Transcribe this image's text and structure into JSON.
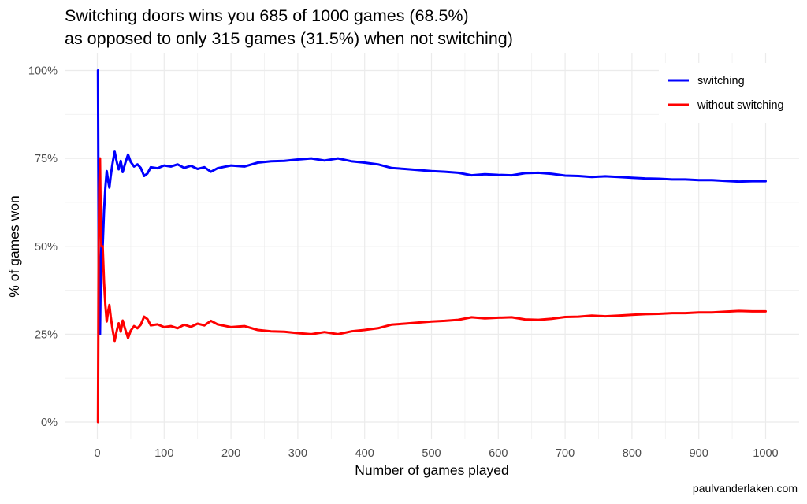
{
  "chart_data": {
    "type": "line",
    "title_lines": [
      "Switching doors wins you 685 of 1000 games (68.5%)",
      "as opposed to only 315 games (31.5%) when not switching)"
    ],
    "xlabel": "Number of games played",
    "ylabel": "% of games won",
    "xlim": [
      0,
      1000
    ],
    "ylim": [
      0,
      1
    ],
    "x_ticks": [
      0,
      100,
      200,
      300,
      400,
      500,
      600,
      700,
      800,
      900,
      1000
    ],
    "y_ticks": [
      0,
      0.25,
      0.5,
      0.75,
      1.0
    ],
    "y_tick_labels": [
      "0%",
      "25%",
      "50%",
      "75%",
      "100%"
    ],
    "grid": true,
    "legend_position": "top-right",
    "series": [
      {
        "name": "switching",
        "color": "#0000ff",
        "x": [
          1,
          2,
          3,
          4,
          5,
          6,
          8,
          10,
          12,
          14,
          16,
          18,
          20,
          22,
          24,
          26,
          28,
          30,
          32,
          35,
          38,
          42,
          46,
          50,
          55,
          60,
          65,
          70,
          75,
          80,
          90,
          100,
          110,
          120,
          130,
          140,
          150,
          160,
          170,
          180,
          190,
          200,
          220,
          240,
          260,
          280,
          300,
          320,
          340,
          360,
          380,
          400,
          420,
          440,
          460,
          480,
          500,
          520,
          540,
          560,
          580,
          600,
          620,
          640,
          660,
          680,
          700,
          720,
          740,
          760,
          780,
          800,
          820,
          840,
          860,
          880,
          900,
          920,
          940,
          960,
          980,
          1000
        ],
        "y": [
          1.0,
          0.5,
          0.333,
          0.25,
          0.4,
          0.5,
          0.5,
          0.6,
          0.667,
          0.714,
          0.688,
          0.667,
          0.7,
          0.727,
          0.75,
          0.769,
          0.75,
          0.733,
          0.719,
          0.743,
          0.711,
          0.738,
          0.761,
          0.74,
          0.727,
          0.733,
          0.723,
          0.7,
          0.707,
          0.725,
          0.722,
          0.73,
          0.727,
          0.733,
          0.723,
          0.729,
          0.72,
          0.725,
          0.712,
          0.722,
          0.726,
          0.73,
          0.727,
          0.738,
          0.742,
          0.743,
          0.747,
          0.75,
          0.744,
          0.75,
          0.742,
          0.738,
          0.733,
          0.723,
          0.72,
          0.717,
          0.714,
          0.712,
          0.709,
          0.702,
          0.705,
          0.703,
          0.702,
          0.708,
          0.709,
          0.706,
          0.701,
          0.7,
          0.697,
          0.699,
          0.697,
          0.695,
          0.693,
          0.692,
          0.69,
          0.69,
          0.688,
          0.688,
          0.686,
          0.684,
          0.685,
          0.685
        ]
      },
      {
        "name": "without switching",
        "color": "#ff0000",
        "x": [
          1,
          2,
          3,
          4,
          5,
          6,
          8,
          10,
          12,
          14,
          16,
          18,
          20,
          22,
          24,
          26,
          28,
          30,
          32,
          35,
          38,
          42,
          46,
          50,
          55,
          60,
          65,
          70,
          75,
          80,
          90,
          100,
          110,
          120,
          130,
          140,
          150,
          160,
          170,
          180,
          190,
          200,
          220,
          240,
          260,
          280,
          300,
          320,
          340,
          360,
          380,
          400,
          420,
          440,
          460,
          480,
          500,
          520,
          540,
          560,
          580,
          600,
          620,
          640,
          660,
          680,
          700,
          720,
          740,
          760,
          780,
          800,
          820,
          840,
          860,
          880,
          900,
          920,
          940,
          960,
          980,
          1000
        ],
        "y": [
          0.0,
          0.5,
          0.667,
          0.75,
          0.6,
          0.5,
          0.5,
          0.4,
          0.333,
          0.286,
          0.313,
          0.333,
          0.3,
          0.273,
          0.25,
          0.231,
          0.25,
          0.267,
          0.281,
          0.257,
          0.289,
          0.262,
          0.239,
          0.26,
          0.273,
          0.267,
          0.277,
          0.3,
          0.293,
          0.275,
          0.278,
          0.27,
          0.273,
          0.267,
          0.277,
          0.271,
          0.28,
          0.275,
          0.288,
          0.278,
          0.274,
          0.27,
          0.273,
          0.262,
          0.258,
          0.257,
          0.253,
          0.25,
          0.256,
          0.25,
          0.258,
          0.262,
          0.267,
          0.277,
          0.28,
          0.283,
          0.286,
          0.288,
          0.291,
          0.298,
          0.295,
          0.297,
          0.298,
          0.292,
          0.291,
          0.294,
          0.299,
          0.3,
          0.303,
          0.301,
          0.303,
          0.305,
          0.307,
          0.308,
          0.31,
          0.31,
          0.312,
          0.312,
          0.314,
          0.316,
          0.315,
          0.315
        ]
      }
    ]
  },
  "caption": "paulvanderlaken.com"
}
